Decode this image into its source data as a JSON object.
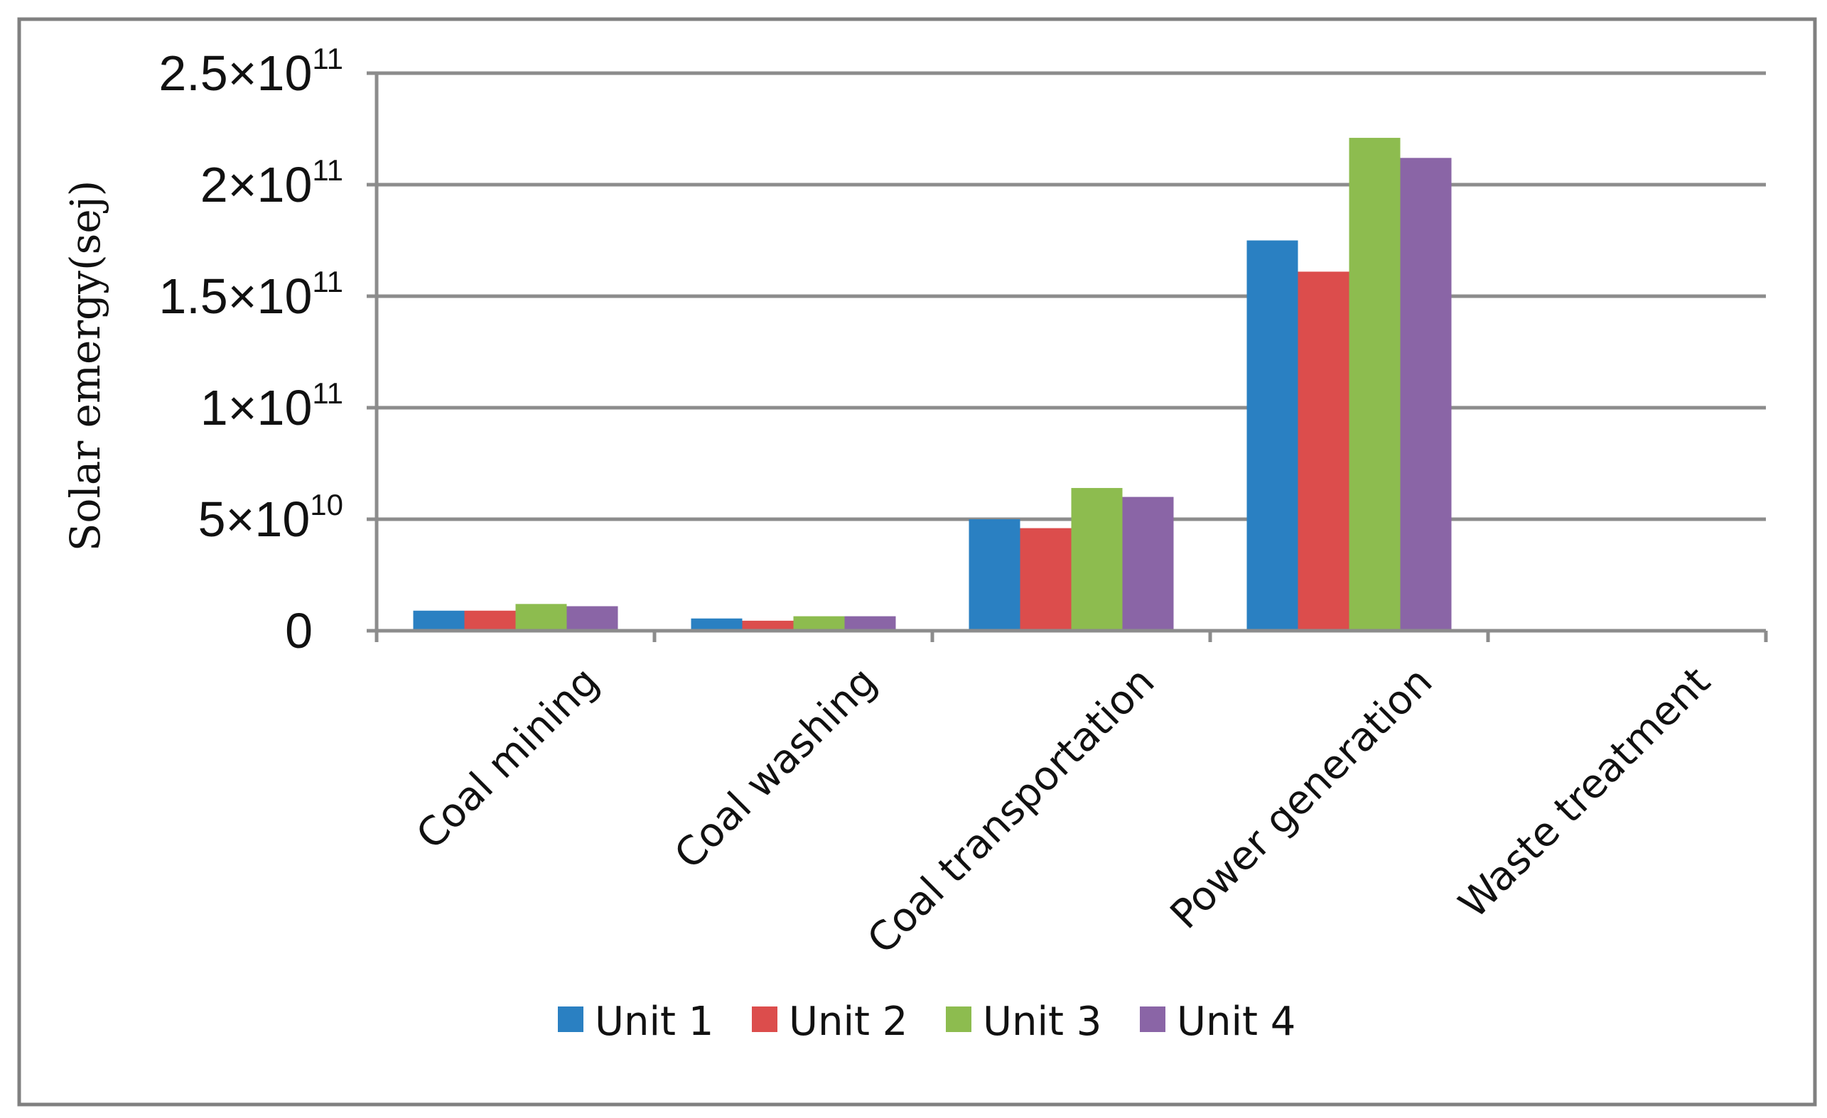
{
  "chart_data": {
    "type": "bar",
    "title": "",
    "xlabel": "",
    "ylabel": "Solar emergy(sej)",
    "ylim": [
      0,
      250000000000
    ],
    "grid": true,
    "legend_position": "bottom",
    "categories": [
      "Coal mining",
      "Coal washing",
      "Coal transportation",
      "Power generation",
      "Waste treatment"
    ],
    "y_ticks": [
      {
        "value": 0,
        "mantissa": "0",
        "exponent": ""
      },
      {
        "value": 50000000000,
        "mantissa": "5×10",
        "exponent": "10"
      },
      {
        "value": 100000000000,
        "mantissa": "1×10",
        "exponent": "11"
      },
      {
        "value": 150000000000,
        "mantissa": "1.5×10",
        "exponent": "11"
      },
      {
        "value": 200000000000,
        "mantissa": "2×10",
        "exponent": "11"
      },
      {
        "value": 250000000000,
        "mantissa": "2.5×10",
        "exponent": "11"
      }
    ],
    "series": [
      {
        "name": "Unit 1",
        "color": "#2A80C2",
        "values": [
          9000000000,
          5500000000,
          50000000000,
          175000000000,
          0
        ]
      },
      {
        "name": "Unit 2",
        "color": "#DC4D4C",
        "values": [
          9000000000,
          4500000000,
          46000000000,
          161000000000,
          0
        ]
      },
      {
        "name": "Unit 3",
        "color": "#8DBC4F",
        "values": [
          12000000000,
          6500000000,
          64000000000,
          221000000000,
          0
        ]
      },
      {
        "name": "Unit 4",
        "color": "#8A65A6",
        "values": [
          11000000000,
          6500000000,
          60000000000,
          212000000000,
          0
        ]
      }
    ]
  }
}
